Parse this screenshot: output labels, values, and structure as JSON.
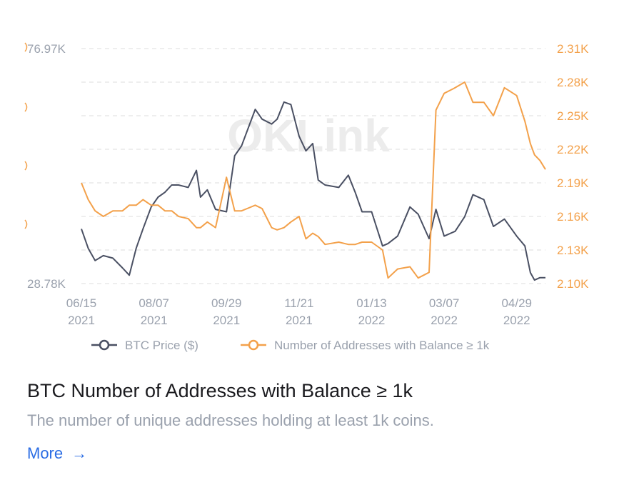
{
  "chart_data": {
    "type": "line",
    "watermark": "OKLink",
    "left_axis": {
      "labels": [
        "76.97K",
        "28.78K"
      ],
      "range": [
        28.78,
        76.97
      ],
      "unit": "K"
    },
    "right_axis": {
      "labels": [
        "2.31K",
        "2.28K",
        "2.25K",
        "2.22K",
        "2.19K",
        "2.16K",
        "2.13K",
        "2.10K"
      ],
      "range": [
        2.1,
        2.31
      ],
      "unit": "K"
    },
    "x_ticks": [
      {
        "month": "06/15",
        "year": "2021"
      },
      {
        "month": "08/07",
        "year": "2021"
      },
      {
        "month": "09/29",
        "year": "2021"
      },
      {
        "month": "11/21",
        "year": "2021"
      },
      {
        "month": "01/13",
        "year": "2022"
      },
      {
        "month": "03/07",
        "year": "2022"
      },
      {
        "month": "04/29",
        "year": "2022"
      }
    ],
    "x_range": [
      "2021-06-15",
      "2022-05-20"
    ],
    "grid": true,
    "legend_position": "bottom",
    "colors": {
      "btc": "#4a5063",
      "addresses": "#f3a14b",
      "grid": "#dcdcdc",
      "axis_text": "#9aa1ad"
    },
    "series": [
      {
        "name": "BTC Price ($)",
        "axis": "left",
        "x": [
          "2021-06-15",
          "2021-06-20",
          "2021-06-25",
          "2021-07-01",
          "2021-07-08",
          "2021-07-15",
          "2021-07-20",
          "2021-07-25",
          "2021-07-30",
          "2021-08-05",
          "2021-08-10",
          "2021-08-15",
          "2021-08-20",
          "2021-08-25",
          "2021-09-01",
          "2021-09-07",
          "2021-09-10",
          "2021-09-15",
          "2021-09-21",
          "2021-09-29",
          "2021-10-05",
          "2021-10-10",
          "2021-10-16",
          "2021-10-20",
          "2021-10-25",
          "2021-11-01",
          "2021-11-05",
          "2021-11-10",
          "2021-11-15",
          "2021-11-21",
          "2021-11-26",
          "2021-12-01",
          "2021-12-05",
          "2021-12-10",
          "2021-12-20",
          "2021-12-27",
          "2022-01-01",
          "2022-01-06",
          "2022-01-13",
          "2022-01-21",
          "2022-01-25",
          "2022-02-01",
          "2022-02-10",
          "2022-02-16",
          "2022-02-24",
          "2022-03-01",
          "2022-03-07",
          "2022-03-15",
          "2022-03-22",
          "2022-03-28",
          "2022-04-05",
          "2022-04-12",
          "2022-04-20",
          "2022-04-29",
          "2022-05-05",
          "2022-05-09",
          "2022-05-12",
          "2022-05-16",
          "2022-05-20"
        ],
        "values": [
          40.0,
          36.0,
          33.5,
          34.5,
          34.0,
          32.0,
          30.5,
          36.0,
          40.0,
          44.5,
          46.5,
          47.5,
          49.0,
          49.0,
          48.5,
          52.0,
          46.5,
          48.0,
          44.0,
          43.5,
          55.0,
          57.0,
          61.5,
          64.5,
          62.5,
          61.5,
          62.5,
          66.0,
          65.5,
          59.0,
          56.0,
          57.5,
          50.0,
          49.0,
          48.5,
          51.0,
          47.5,
          43.5,
          43.5,
          36.5,
          37.0,
          38.5,
          44.5,
          43.0,
          38.0,
          44.0,
          38.5,
          39.5,
          42.5,
          47.0,
          46.0,
          40.5,
          42.0,
          38.5,
          36.5,
          31.0,
          29.5,
          30.0,
          30.0
        ]
      },
      {
        "name": "Number of Addresses with Balance ≥ 1k",
        "axis": "right",
        "x": [
          "2021-06-15",
          "2021-06-20",
          "2021-06-25",
          "2021-07-01",
          "2021-07-08",
          "2021-07-15",
          "2021-07-20",
          "2021-07-25",
          "2021-07-30",
          "2021-08-05",
          "2021-08-10",
          "2021-08-15",
          "2021-08-20",
          "2021-08-25",
          "2021-09-01",
          "2021-09-07",
          "2021-09-10",
          "2021-09-15",
          "2021-09-21",
          "2021-09-29",
          "2021-10-05",
          "2021-10-10",
          "2021-10-16",
          "2021-10-20",
          "2021-10-25",
          "2021-11-01",
          "2021-11-05",
          "2021-11-10",
          "2021-11-15",
          "2021-11-21",
          "2021-11-26",
          "2021-12-01",
          "2021-12-05",
          "2021-12-10",
          "2021-12-20",
          "2021-12-27",
          "2022-01-01",
          "2022-01-06",
          "2022-01-13",
          "2022-01-21",
          "2022-01-25",
          "2022-02-01",
          "2022-02-10",
          "2022-02-16",
          "2022-02-24",
          "2022-03-01",
          "2022-03-07",
          "2022-03-15",
          "2022-03-22",
          "2022-03-28",
          "2022-04-05",
          "2022-04-12",
          "2022-04-20",
          "2022-04-29",
          "2022-05-05",
          "2022-05-09",
          "2022-05-12",
          "2022-05-16",
          "2022-05-20"
        ],
        "values": [
          2.19,
          2.175,
          2.165,
          2.16,
          2.165,
          2.165,
          2.17,
          2.17,
          2.175,
          2.17,
          2.17,
          2.165,
          2.165,
          2.16,
          2.158,
          2.15,
          2.15,
          2.155,
          2.15,
          2.195,
          2.165,
          2.165,
          2.168,
          2.17,
          2.167,
          2.15,
          2.148,
          2.15,
          2.155,
          2.16,
          2.14,
          2.145,
          2.142,
          2.135,
          2.137,
          2.135,
          2.135,
          2.137,
          2.137,
          2.13,
          2.105,
          2.113,
          2.115,
          2.105,
          2.11,
          2.255,
          2.27,
          2.275,
          2.28,
          2.262,
          2.262,
          2.25,
          2.275,
          2.268,
          2.245,
          2.225,
          2.215,
          2.21,
          2.202
        ]
      }
    ]
  },
  "info": {
    "title": "BTC Number of Addresses with Balance ≥ 1k",
    "subtitle": "The number of unique addresses holding at least 1k coins.",
    "more_label": "More",
    "more_arrow": "→",
    "link_color": "#2b6de4"
  }
}
